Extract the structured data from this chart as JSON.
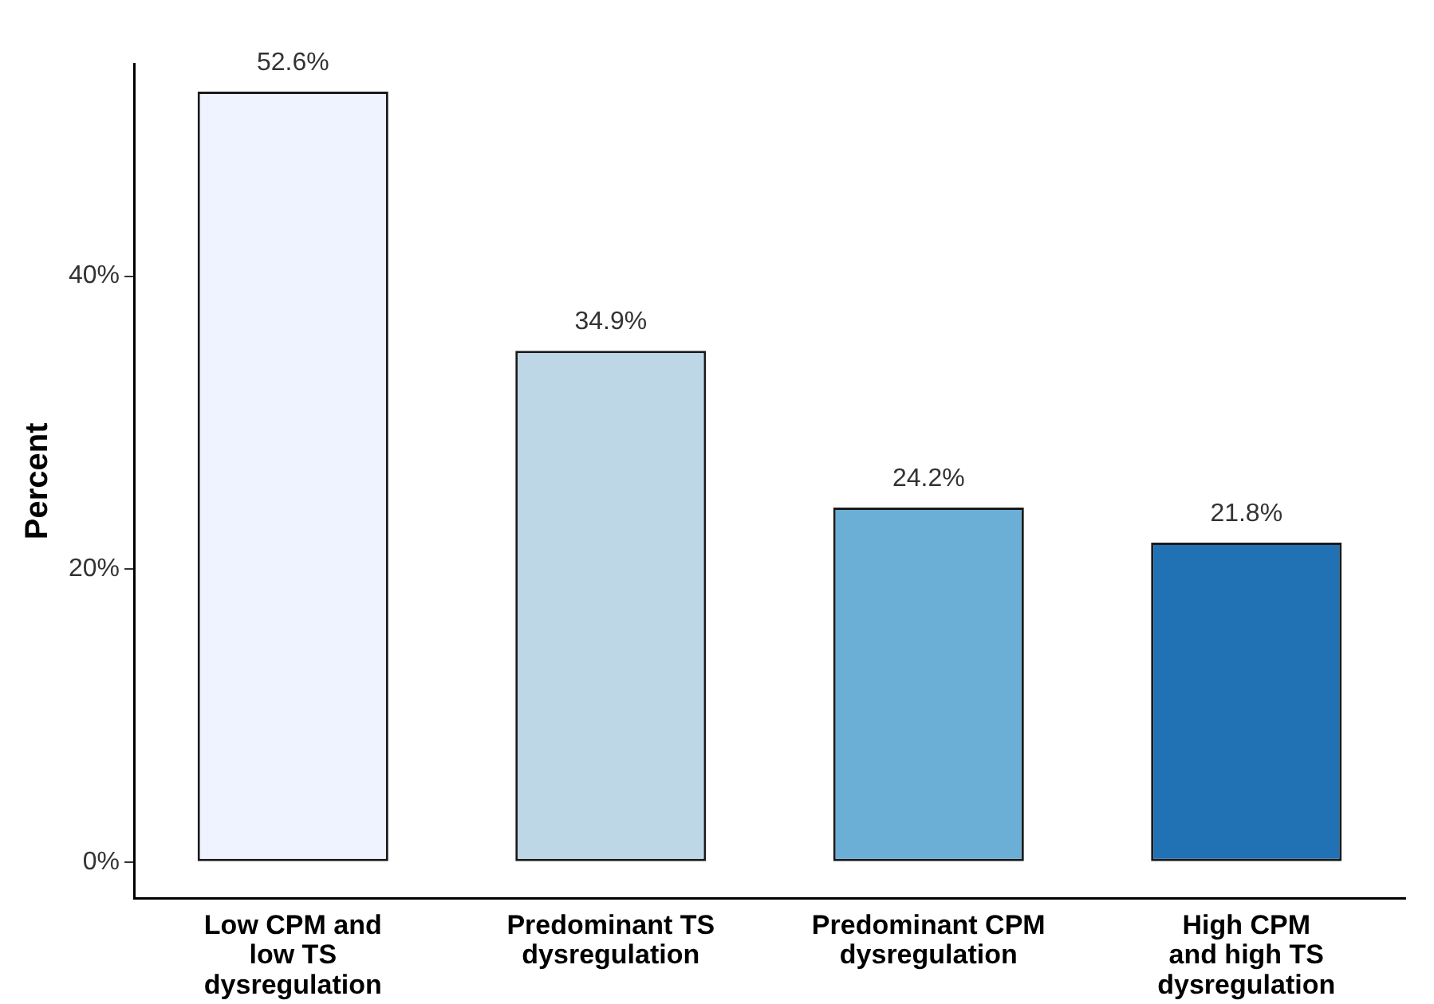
{
  "chart_data": {
    "type": "bar",
    "ylabel": "Percent",
    "categories": [
      "Low CPM and\nlow TS\ndysregulation",
      "Predominant TS\ndysregulation",
      "Predominant CPM\ndysregulation",
      "High CPM\nand high TS\ndysregulation"
    ],
    "values": [
      52.6,
      34.9,
      24.2,
      21.8
    ],
    "colors": [
      "#eef3ff",
      "#bdd7e7",
      "#6baed6",
      "#2171b5"
    ],
    "value_labels": [
      "52.6%",
      "34.9%",
      "24.2%",
      "21.8%"
    ],
    "ylim": [
      -2.5,
      54.5
    ],
    "yticks": [
      {
        "value": 0,
        "label": "0%"
      },
      {
        "value": 20,
        "label": "20%"
      },
      {
        "value": 40,
        "label": "40%"
      }
    ],
    "grid": false,
    "legend": false
  }
}
